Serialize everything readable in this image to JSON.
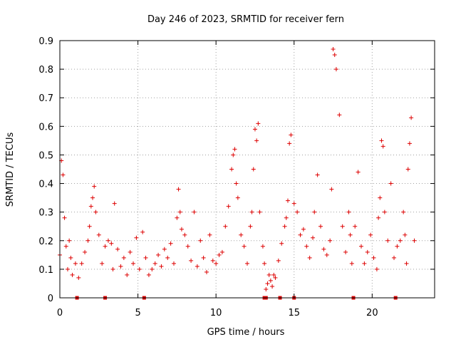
{
  "chart_data": {
    "type": "scatter",
    "title": "Day 246 of 2023, SRMTID for receiver fern",
    "xlabel": "GPS time / hours",
    "ylabel": "SRMTID / TECUs",
    "xlim": [
      0,
      24
    ],
    "ylim": [
      0,
      0.9
    ],
    "xticks": [
      0,
      5,
      10,
      15,
      20
    ],
    "xtick_labels": [
      "0",
      "5",
      "10",
      "15",
      "20"
    ],
    "yticks": [
      0,
      0.1,
      0.2,
      0.3,
      0.4,
      0.5,
      0.6,
      0.7,
      0.8,
      0.9
    ],
    "ytick_labels": [
      "0",
      "0.1",
      "0.2",
      "0.3",
      "0.4",
      "0.5",
      "0.6",
      "0.7",
      "0.8",
      "0.9"
    ],
    "grid": true,
    "marker": "+",
    "color": "#dd0000",
    "series": [
      {
        "name": "SRMTID",
        "x": [
          0.0,
          0.1,
          0.2,
          0.3,
          0.4,
          0.5,
          0.6,
          0.7,
          0.8,
          1.0,
          1.2,
          1.4,
          1.6,
          1.8,
          1.9,
          2.0,
          2.1,
          2.2,
          2.3,
          2.5,
          2.7,
          2.9,
          3.1,
          3.3,
          3.4,
          3.5,
          3.7,
          3.9,
          4.1,
          4.3,
          4.5,
          4.7,
          4.9,
          5.1,
          5.3,
          5.5,
          5.7,
          5.9,
          6.1,
          6.3,
          6.5,
          6.7,
          6.9,
          7.1,
          7.3,
          7.5,
          7.6,
          7.7,
          7.8,
          8.0,
          8.2,
          8.4,
          8.6,
          8.8,
          9.0,
          9.2,
          9.4,
          9.6,
          9.8,
          10.0,
          10.2,
          10.4,
          10.6,
          10.8,
          11.0,
          11.1,
          11.2,
          11.3,
          11.4,
          11.6,
          11.8,
          12.0,
          12.2,
          12.3,
          12.4,
          12.5,
          12.6,
          12.7,
          12.8,
          13.0,
          13.1,
          13.2,
          13.3,
          13.4,
          13.5,
          13.6,
          13.7,
          13.8,
          14.0,
          14.2,
          14.4,
          14.5,
          14.6,
          14.7,
          14.8,
          15.0,
          15.2,
          15.4,
          15.6,
          15.8,
          16.0,
          16.2,
          16.3,
          16.5,
          16.7,
          16.9,
          17.1,
          17.3,
          17.4,
          17.5,
          17.6,
          17.7,
          17.9,
          18.1,
          18.3,
          18.5,
          18.6,
          18.7,
          18.9,
          19.1,
          19.3,
          19.5,
          19.7,
          19.9,
          20.1,
          20.3,
          20.4,
          20.5,
          20.6,
          20.7,
          20.8,
          21.0,
          21.2,
          21.4,
          21.6,
          21.8,
          22.0,
          22.1,
          22.2,
          22.3,
          22.4,
          22.5,
          22.7
        ],
        "y": [
          0.15,
          0.48,
          0.43,
          0.28,
          0.18,
          0.1,
          0.2,
          0.14,
          0.08,
          0.12,
          0.07,
          0.12,
          0.16,
          0.2,
          0.25,
          0.32,
          0.35,
          0.39,
          0.3,
          0.22,
          0.12,
          0.18,
          0.2,
          0.19,
          0.1,
          0.33,
          0.17,
          0.11,
          0.14,
          0.08,
          0.16,
          0.12,
          0.21,
          0.1,
          0.23,
          0.14,
          0.08,
          0.1,
          0.12,
          0.15,
          0.11,
          0.17,
          0.14,
          0.19,
          0.12,
          0.28,
          0.38,
          0.3,
          0.24,
          0.22,
          0.18,
          0.13,
          0.3,
          0.11,
          0.2,
          0.14,
          0.09,
          0.22,
          0.13,
          0.12,
          0.15,
          0.16,
          0.25,
          0.32,
          0.45,
          0.5,
          0.52,
          0.4,
          0.35,
          0.22,
          0.18,
          0.12,
          0.25,
          0.3,
          0.45,
          0.59,
          0.55,
          0.61,
          0.3,
          0.18,
          0.12,
          0.03,
          0.05,
          0.08,
          0.06,
          0.04,
          0.08,
          0.07,
          0.13,
          0.19,
          0.25,
          0.28,
          0.34,
          0.54,
          0.57,
          0.33,
          0.3,
          0.22,
          0.24,
          0.18,
          0.14,
          0.21,
          0.3,
          0.43,
          0.25,
          0.17,
          0.15,
          0.2,
          0.38,
          0.87,
          0.85,
          0.8,
          0.64,
          0.25,
          0.16,
          0.3,
          0.22,
          0.12,
          0.25,
          0.44,
          0.18,
          0.12,
          0.16,
          0.22,
          0.14,
          0.1,
          0.28,
          0.35,
          0.55,
          0.53,
          0.3,
          0.2,
          0.4,
          0.14,
          0.18,
          0.2,
          0.3,
          0.22,
          0.12,
          0.45,
          0.54,
          0.63,
          0.2
        ]
      }
    ],
    "gap_markers_x": [
      1.1,
      2.9,
      5.4,
      13.1,
      13.2,
      14.1,
      15.0,
      18.8,
      21.5
    ]
  }
}
